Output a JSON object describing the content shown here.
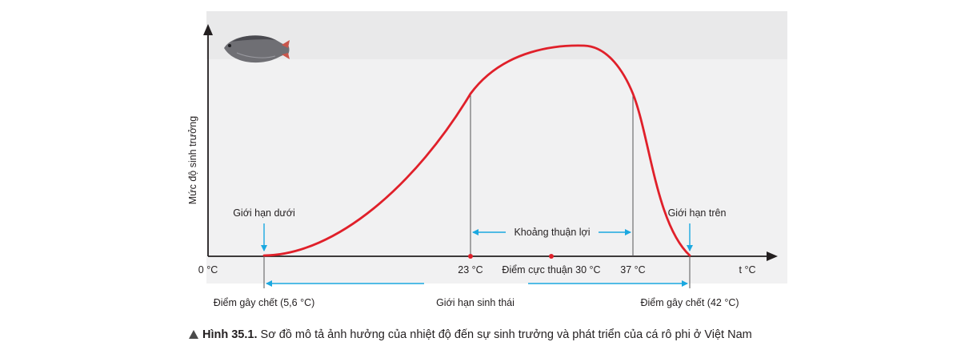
{
  "diagram": {
    "y_axis_label": "Mức độ sinh trưởng",
    "x_axis_label": "t °C",
    "origin_label": "0 °C",
    "lower_limit_label": "Giới hạn dưới",
    "upper_limit_label": "Giới hạn trên",
    "favorable_range_label": "Khoảng thuận lợi",
    "tick_23": "23 °C",
    "optimum_label": "Điểm cực thuận 30 °C",
    "tick_37": "37 °C",
    "death_low_label": "Điểm gây chết (5,6 °C)",
    "ecological_limit_label": "Giới hạn sinh thái",
    "death_high_label": "Điểm gây chết (42 °C)",
    "colors": {
      "curve": "#e0202a",
      "arrow": "#1ba8e0",
      "axis": "#231f20",
      "panel": "#f1f1f2",
      "fish": "fish-icon"
    }
  },
  "caption": {
    "title": "Hình 35.1.",
    "text": " Sơ đồ mô tả ảnh hưởng của nhiệt độ đến sự sinh trưởng và phát triển của cá rô phi ở Việt Nam"
  }
}
